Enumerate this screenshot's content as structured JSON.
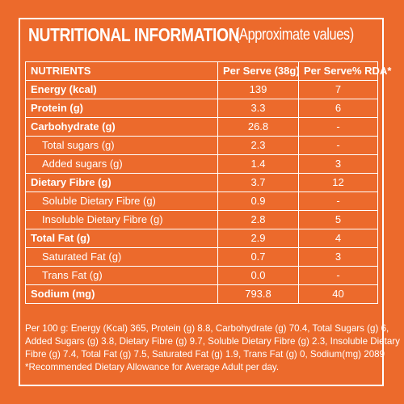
{
  "title": {
    "main": "NUTRITIONAL INFORMATION",
    "sub": "(Approximate values)"
  },
  "table": {
    "headers": [
      "NUTRIENTS",
      "Per Serve (38g)",
      "Per Serve% RDA*"
    ],
    "rows": [
      {
        "name": "Energy (kcal)",
        "serve": "139",
        "rda": "7",
        "bold": true
      },
      {
        "name": "Protein (g)",
        "serve": "3.3",
        "rda": "6",
        "bold": true
      },
      {
        "name": "Carbohydrate (g)",
        "serve": "26.8",
        "rda": "-",
        "bold": true
      },
      {
        "name": "Total sugars (g)",
        "serve": "2.3",
        "rda": "-",
        "bold": false
      },
      {
        "name": "Added sugars (g)",
        "serve": "1.4",
        "rda": "3",
        "bold": false
      },
      {
        "name": "Dietary Fibre (g)",
        "serve": "3.7",
        "rda": "12",
        "bold": true
      },
      {
        "name": "Soluble Dietary Fibre (g)",
        "serve": "0.9",
        "rda": "-",
        "bold": false
      },
      {
        "name": "Insoluble Dietary Fibre (g)",
        "serve": "2.8",
        "rda": "5",
        "bold": false
      },
      {
        "name": "Total Fat (g)",
        "serve": "2.9",
        "rda": "4",
        "bold": true
      },
      {
        "name": "Saturated Fat (g)",
        "serve": "0.7",
        "rda": "3",
        "bold": false
      },
      {
        "name": "Trans Fat (g)",
        "serve": "0.0",
        "rda": "-",
        "bold": false
      },
      {
        "name": "Sodium (mg)",
        "serve": "793.8",
        "rda": "40",
        "bold": true
      }
    ]
  },
  "footnote": {
    "line1": "Per 100 g: Energy (Kcal) 365, Protein (g) 8.8, Carbohydrate (g) 70.4, Total Sugars (g) 6,",
    "line2": "Added Sugars (g) 3.8, Dietary Fibre (g) 9.7, Soluble Dietary Fibre (g) 2.3, Insoluble Dietary",
    "line3": "Fibre (g) 7.4, Total Fat (g) 7.5, Saturated Fat (g) 1.9, Trans Fat (g) 0, Sodium(mg) 2089",
    "line4": "*Recommended Dietary Allowance for Average Adult per day."
  },
  "colors": {
    "background": "#ec6a2c",
    "text": "#ffffff"
  }
}
